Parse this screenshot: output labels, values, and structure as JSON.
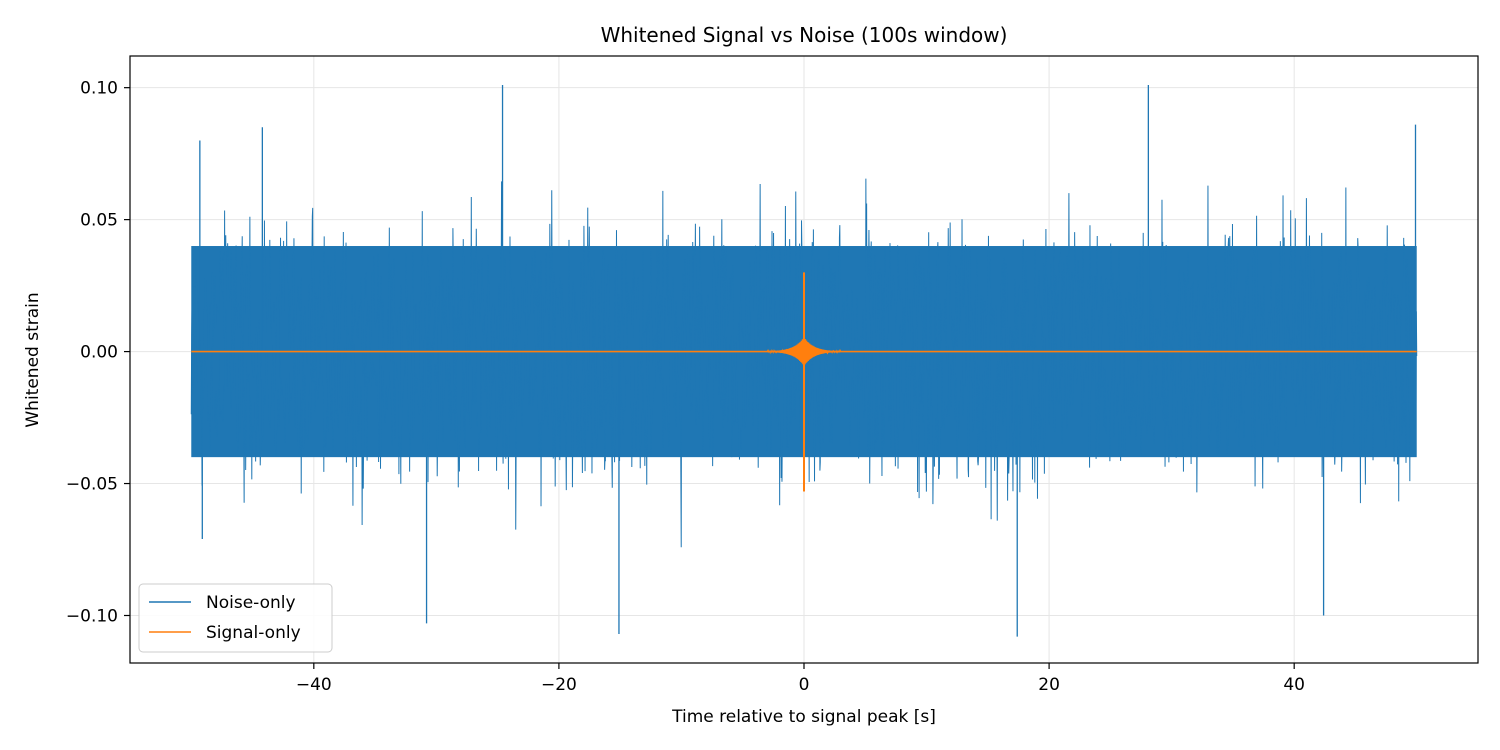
{
  "chart_data": {
    "type": "line",
    "title": "Whitened Signal vs Noise (100s window)",
    "xlabel": "Time relative to signal peak [s]",
    "ylabel": "Whitened strain",
    "xlim": [
      -55,
      55
    ],
    "ylim": [
      -0.118,
      0.112
    ],
    "x_ticks": [
      -40,
      -20,
      0,
      20,
      40
    ],
    "x_tick_labels": [
      "−40",
      "−20",
      "0",
      "20",
      "40"
    ],
    "y_ticks": [
      0.1,
      0.05,
      0.0,
      -0.05,
      -0.1
    ],
    "y_tick_labels": [
      "0.10",
      "0.05",
      "0.00",
      "−0.05",
      "−0.10"
    ],
    "grid": true,
    "legend_position": "lower-left",
    "series": [
      {
        "name": "Noise-only",
        "color": "#1f77b4",
        "x_range": [
          -50,
          50
        ],
        "typical_envelope": [
          -0.04,
          0.04
        ],
        "extremes": [
          {
            "x": -49.3,
            "y": 0.08
          },
          {
            "x": -49.1,
            "y": -0.071
          },
          {
            "x": -44.2,
            "y": 0.085
          },
          {
            "x": -24.6,
            "y": 0.101
          },
          {
            "x": -30.8,
            "y": -0.103
          },
          {
            "x": -15.1,
            "y": -0.107
          },
          {
            "x": 17.4,
            "y": -0.108
          },
          {
            "x": 28.1,
            "y": 0.101
          },
          {
            "x": 42.4,
            "y": -0.1
          },
          {
            "x": 49.9,
            "y": 0.086
          }
        ]
      },
      {
        "name": "Signal-only",
        "color": "#ff7f0e",
        "x_range": [
          -50,
          50
        ],
        "baseline": 0.0,
        "peak_time": 0.0,
        "peak_max": 0.03,
        "peak_min": -0.053
      }
    ]
  }
}
